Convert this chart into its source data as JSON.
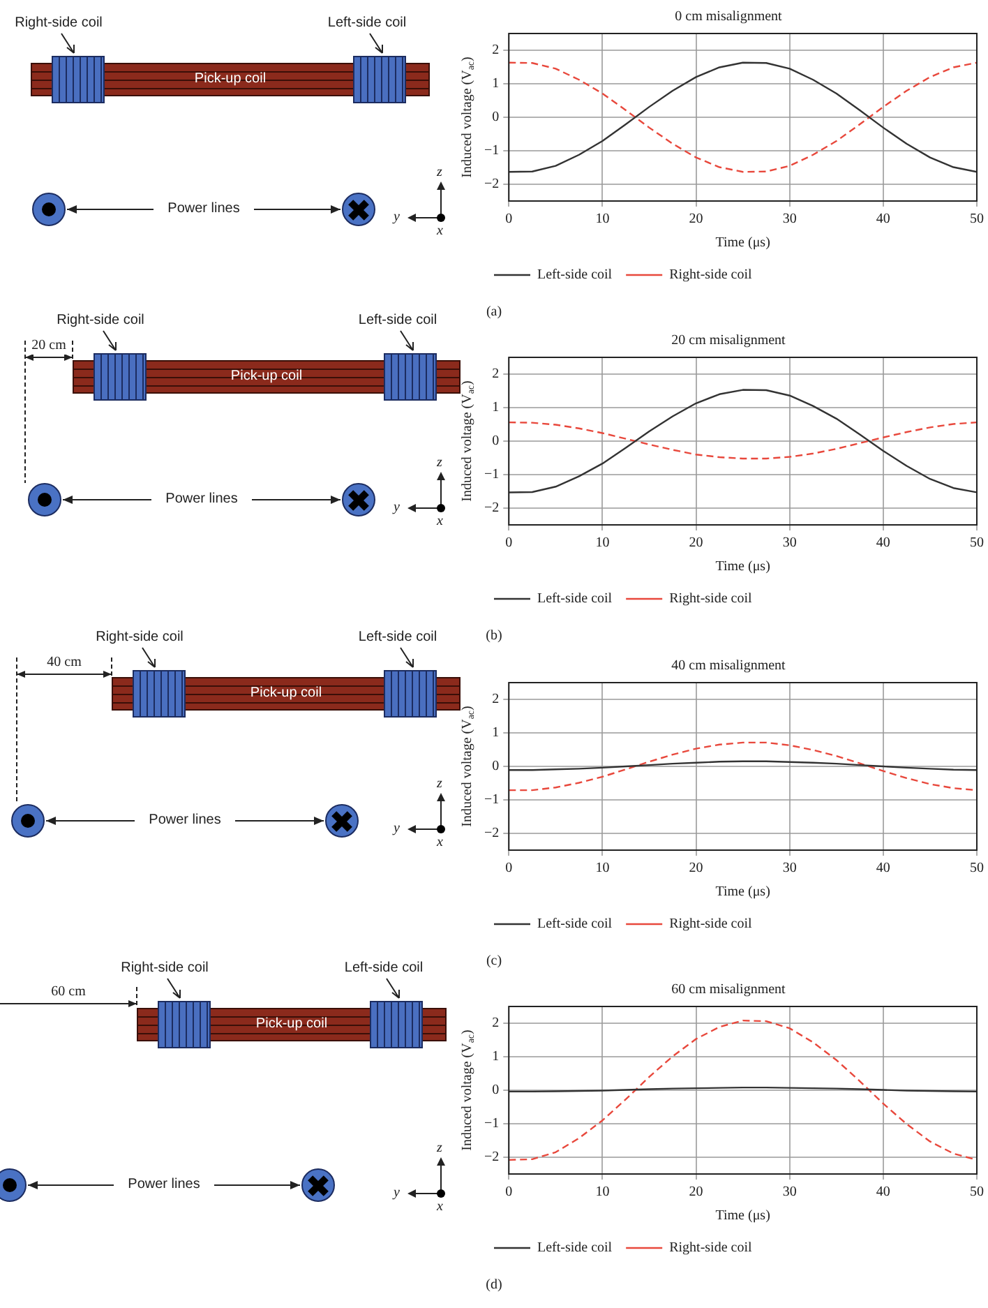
{
  "chart_data": [
    {
      "type": "line",
      "title": "0 cm misalignment",
      "xlabel": "Time (μs)",
      "ylabel": "Induced voltage (V$_{ac}$)",
      "x": [
        0,
        2.5,
        5,
        7.5,
        10,
        12.5,
        15,
        17.5,
        20,
        22.5,
        25,
        27.5,
        30,
        32.5,
        35,
        37.5,
        40,
        42.5,
        45,
        47.5,
        50
      ],
      "xlim": [
        0,
        50
      ],
      "xticks": [
        0,
        10,
        20,
        30,
        40,
        50
      ],
      "ylim": [
        -2.5,
        2.5
      ],
      "yticks": [
        -2,
        -1,
        0,
        1,
        2
      ],
      "grid": true,
      "legend": "bottom",
      "series": [
        {
          "name": "Left-side coil",
          "color": "#333333",
          "line_style": "solid",
          "values": [
            -1.63,
            -1.62,
            -1.45,
            -1.12,
            -0.71,
            -0.21,
            0.31,
            0.79,
            1.2,
            1.49,
            1.63,
            1.62,
            1.45,
            1.12,
            0.71,
            0.21,
            -0.31,
            -0.79,
            -1.2,
            -1.49,
            -1.63
          ]
        },
        {
          "name": "Right-side coil",
          "color": "#e8483c",
          "line_style": "dashed",
          "values": [
            1.63,
            1.62,
            1.45,
            1.12,
            0.71,
            0.21,
            -0.31,
            -0.79,
            -1.2,
            -1.49,
            -1.63,
            -1.62,
            -1.45,
            -1.12,
            -0.71,
            -0.21,
            0.31,
            0.79,
            1.2,
            1.49,
            1.63
          ]
        }
      ],
      "annotations": [
        "(a)",
        "Right-side coil",
        "Left-side coil",
        "Pick-up coil",
        "Power lines",
        "z",
        "y",
        "x"
      ]
    },
    {
      "type": "line",
      "title": "20 cm misalignment",
      "xlabel": "Time (μs)",
      "ylabel": "Induced voltage (V$_{ac}$)",
      "x": [
        0,
        2.5,
        5,
        7.5,
        10,
        12.5,
        15,
        17.5,
        20,
        22.5,
        25,
        27.5,
        30,
        32.5,
        35,
        37.5,
        40,
        42.5,
        45,
        47.5,
        50
      ],
      "xlim": [
        0,
        50
      ],
      "xticks": [
        0,
        10,
        20,
        30,
        40,
        50
      ],
      "ylim": [
        -2.5,
        2.5
      ],
      "yticks": [
        -2,
        -1,
        0,
        1,
        2
      ],
      "grid": true,
      "legend": "bottom",
      "series": [
        {
          "name": "Left-side coil",
          "color": "#333333",
          "line_style": "solid",
          "values": [
            -1.53,
            -1.52,
            -1.36,
            -1.05,
            -0.67,
            -0.2,
            0.29,
            0.74,
            1.13,
            1.4,
            1.53,
            1.52,
            1.36,
            1.05,
            0.67,
            0.2,
            -0.29,
            -0.74,
            -1.13,
            -1.4,
            -1.53
          ]
        },
        {
          "name": "Right-side coil",
          "color": "#e8483c",
          "line_style": "dashed",
          "values": [
            0.56,
            0.55,
            0.49,
            0.38,
            0.24,
            0.07,
            -0.1,
            -0.26,
            -0.4,
            -0.48,
            -0.52,
            -0.52,
            -0.47,
            -0.37,
            -0.23,
            -0.06,
            0.11,
            0.27,
            0.41,
            0.51,
            0.56
          ]
        }
      ],
      "annotations": [
        "(b)",
        "Right-side coil",
        "Left-side coil",
        "Pick-up coil",
        "Power lines",
        "z",
        "y",
        "x",
        "20 cm"
      ]
    },
    {
      "type": "line",
      "title": "40 cm misalignment",
      "xlabel": "Time (μs)",
      "ylabel": "Induced voltage (V$_{ac}$)",
      "x": [
        0,
        2.5,
        5,
        7.5,
        10,
        12.5,
        15,
        17.5,
        20,
        22.5,
        25,
        27.5,
        30,
        32.5,
        35,
        37.5,
        40,
        42.5,
        45,
        47.5,
        50
      ],
      "xlim": [
        0,
        50
      ],
      "xticks": [
        0,
        10,
        20,
        30,
        40,
        50
      ],
      "ylim": [
        -2.5,
        2.5
      ],
      "yticks": [
        -2,
        -1,
        0,
        1,
        2
      ],
      "grid": true,
      "legend": "bottom",
      "series": [
        {
          "name": "Left-side coil",
          "color": "#333333",
          "line_style": "solid",
          "values": [
            -0.11,
            -0.11,
            -0.09,
            -0.07,
            -0.04,
            0,
            0.04,
            0.08,
            0.11,
            0.14,
            0.15,
            0.15,
            0.13,
            0.11,
            0.08,
            0.04,
            0,
            -0.04,
            -0.07,
            -0.1,
            -0.11
          ]
        },
        {
          "name": "Right-side coil",
          "color": "#e8483c",
          "line_style": "dashed",
          "values": [
            -0.71,
            -0.71,
            -0.63,
            -0.49,
            -0.31,
            -0.09,
            0.14,
            0.35,
            0.53,
            0.65,
            0.71,
            0.71,
            0.63,
            0.49,
            0.31,
            0.09,
            -0.14,
            -0.35,
            -0.53,
            -0.65,
            -0.71
          ]
        }
      ],
      "annotations": [
        "(c)",
        "Right-side coil",
        "Left-side coil",
        "Pick-up coil",
        "Power lines",
        "z",
        "y",
        "x",
        "40 cm"
      ]
    },
    {
      "type": "line",
      "title": "60 cm misalignment",
      "xlabel": "Time (μs)",
      "ylabel": "Induced voltage (V$_{ac}$)",
      "x": [
        0,
        2.5,
        5,
        7.5,
        10,
        12.5,
        15,
        17.5,
        20,
        22.5,
        25,
        27.5,
        30,
        32.5,
        35,
        37.5,
        40,
        42.5,
        45,
        47.5,
        50
      ],
      "xlim": [
        0,
        50
      ],
      "xticks": [
        0,
        10,
        20,
        30,
        40,
        50
      ],
      "ylim": [
        -2.5,
        2.5
      ],
      "yticks": [
        -2,
        -1,
        0,
        1,
        2
      ],
      "grid": true,
      "legend": "bottom",
      "series": [
        {
          "name": "Left-side coil",
          "color": "#333333",
          "line_style": "solid",
          "values": [
            -0.04,
            -0.04,
            -0.03,
            -0.02,
            -0.01,
            0.01,
            0.03,
            0.05,
            0.06,
            0.07,
            0.08,
            0.08,
            0.07,
            0.06,
            0.05,
            0.03,
            0.01,
            -0.01,
            -0.02,
            -0.03,
            -0.04
          ]
        },
        {
          "name": "Right-side coil",
          "color": "#e8483c",
          "line_style": "dashed",
          "values": [
            -2.08,
            -2.06,
            -1.85,
            -1.43,
            -0.9,
            -0.27,
            0.4,
            1.01,
            1.53,
            1.89,
            2.08,
            2.06,
            1.85,
            1.43,
            0.9,
            0.27,
            -0.4,
            -1.01,
            -1.53,
            -1.89,
            -2.08
          ]
        }
      ],
      "annotations": [
        "(d)",
        "Right-side coil",
        "Left-side coil",
        "Pick-up coil",
        "Power lines",
        "z",
        "y",
        "x",
        "60 cm"
      ]
    }
  ]
}
